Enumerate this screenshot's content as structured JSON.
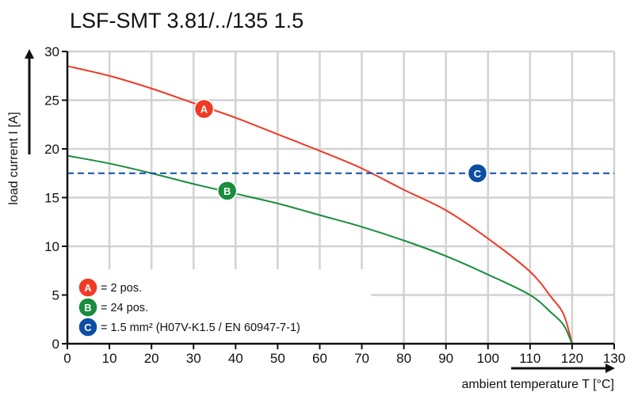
{
  "chart_data": {
    "type": "line",
    "title": "LSF-SMT 3.81/../135 1.5",
    "xlabel": "ambient temperature T [°C]",
    "ylabel": "load current I [A]",
    "xlim": [
      0,
      130
    ],
    "ylim": [
      0,
      30
    ],
    "xticks": [
      "0",
      "10",
      "20",
      "30",
      "40",
      "50",
      "60",
      "70",
      "80",
      "90",
      "100",
      "110",
      "120",
      "130"
    ],
    "yticks": [
      "0",
      "5",
      "10",
      "15",
      "20",
      "25",
      "30"
    ],
    "grid": true,
    "series": [
      {
        "key": "A",
        "color": "#f03a25",
        "style": "solid",
        "x": [
          0,
          10,
          20,
          30,
          40,
          50,
          60,
          70,
          80,
          90,
          100,
          110,
          115,
          118,
          120
        ],
        "y": [
          28.5,
          27.5,
          26.2,
          24.7,
          23.2,
          21.5,
          19.8,
          18.0,
          15.8,
          13.7,
          10.8,
          7.4,
          4.8,
          3.0,
          0
        ],
        "marker": {
          "x": 32.5,
          "y": 24.1
        }
      },
      {
        "key": "B",
        "color": "#1a8c3e",
        "style": "solid",
        "x": [
          0,
          10,
          20,
          30,
          40,
          50,
          60,
          70,
          80,
          90,
          100,
          110,
          115,
          118,
          120
        ],
        "y": [
          19.3,
          18.5,
          17.5,
          16.4,
          15.4,
          14.4,
          13.2,
          12.0,
          10.6,
          9.0,
          7.1,
          5.0,
          3.2,
          1.9,
          0
        ],
        "marker": {
          "x": 38,
          "y": 15.7
        }
      },
      {
        "key": "C",
        "color": "#0b4ea2",
        "style": "dashed",
        "x": [
          0,
          130
        ],
        "y": [
          17.5,
          17.5
        ],
        "marker": {
          "x": 97.5,
          "y": 17.5
        }
      }
    ],
    "legend": {
      "placement": "bottom-left",
      "items": [
        {
          "key": "A",
          "text": "= 2 pos.",
          "color": "#f03a25"
        },
        {
          "key": "B",
          "text": "= 24 pos.",
          "color": "#1a8c3e"
        },
        {
          "key": "C",
          "text": "= 1.5 mm² (H07V-K1.5 / EN 60947-7-1)",
          "color": "#0b4ea2"
        }
      ]
    }
  }
}
